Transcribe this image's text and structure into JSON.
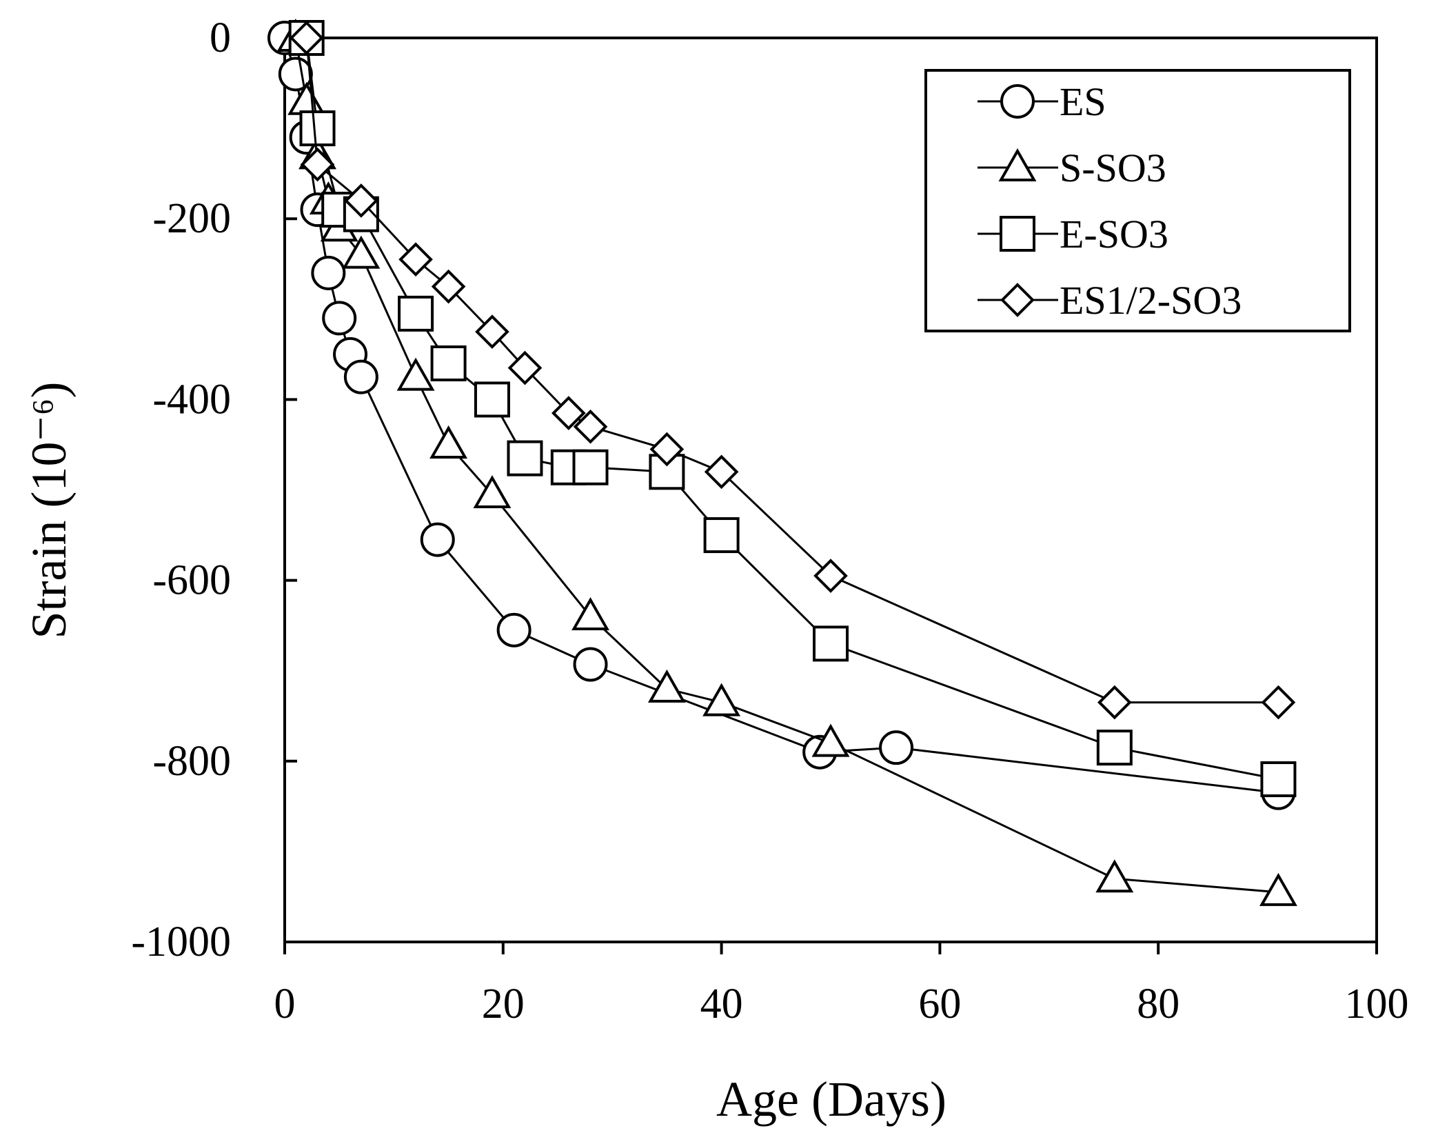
{
  "chart_data": {
    "type": "line",
    "title": "",
    "xlabel": "Age (Days)",
    "ylabel": "Strain (10⁻⁶)",
    "xlim": [
      0,
      100
    ],
    "ylim": [
      -1000,
      0
    ],
    "xticks": [
      "0",
      "20",
      "40",
      "60",
      "80",
      "100"
    ],
    "yticks": [
      "0",
      "-200",
      "-400",
      "-600",
      "-800",
      "-1000"
    ],
    "grid": false,
    "legend_position": "top-right",
    "series": [
      {
        "name": "ES",
        "marker": "circle",
        "x": [
          0,
          1,
          2,
          3,
          4,
          5,
          6,
          7,
          14,
          21,
          28,
          49,
          56,
          91
        ],
        "y": [
          0,
          -40,
          -110,
          -190,
          -260,
          -310,
          -350,
          -375,
          -555,
          -655,
          -693,
          -790,
          -785,
          -835
        ]
      },
      {
        "name": "S-SO3",
        "marker": "triangle",
        "x": [
          1,
          2,
          3,
          4,
          5,
          7,
          12,
          15,
          19,
          28,
          35,
          40,
          50,
          76,
          91
        ],
        "y": [
          0,
          -70,
          -130,
          -180,
          -210,
          -240,
          -375,
          -450,
          -505,
          -640,
          -720,
          -735,
          -780,
          -930,
          -945
        ]
      },
      {
        "name": "E-SO3",
        "marker": "square",
        "x": [
          2,
          3,
          5,
          7,
          12,
          15,
          19,
          22,
          26,
          28,
          35,
          40,
          50,
          76,
          91
        ],
        "y": [
          0,
          -100,
          -190,
          -195,
          -305,
          -360,
          -400,
          -465,
          -475,
          -475,
          -480,
          -550,
          -670,
          -785,
          -820
        ]
      },
      {
        "name": "ES1/2-SO3",
        "marker": "diamond",
        "x": [
          2,
          3,
          7,
          12,
          15,
          19,
          22,
          26,
          28,
          35,
          40,
          50,
          76,
          91
        ],
        "y": [
          0,
          -140,
          -180,
          -245,
          -275,
          -325,
          -365,
          -415,
          -430,
          -455,
          -480,
          -595,
          -735,
          -735
        ]
      }
    ]
  }
}
